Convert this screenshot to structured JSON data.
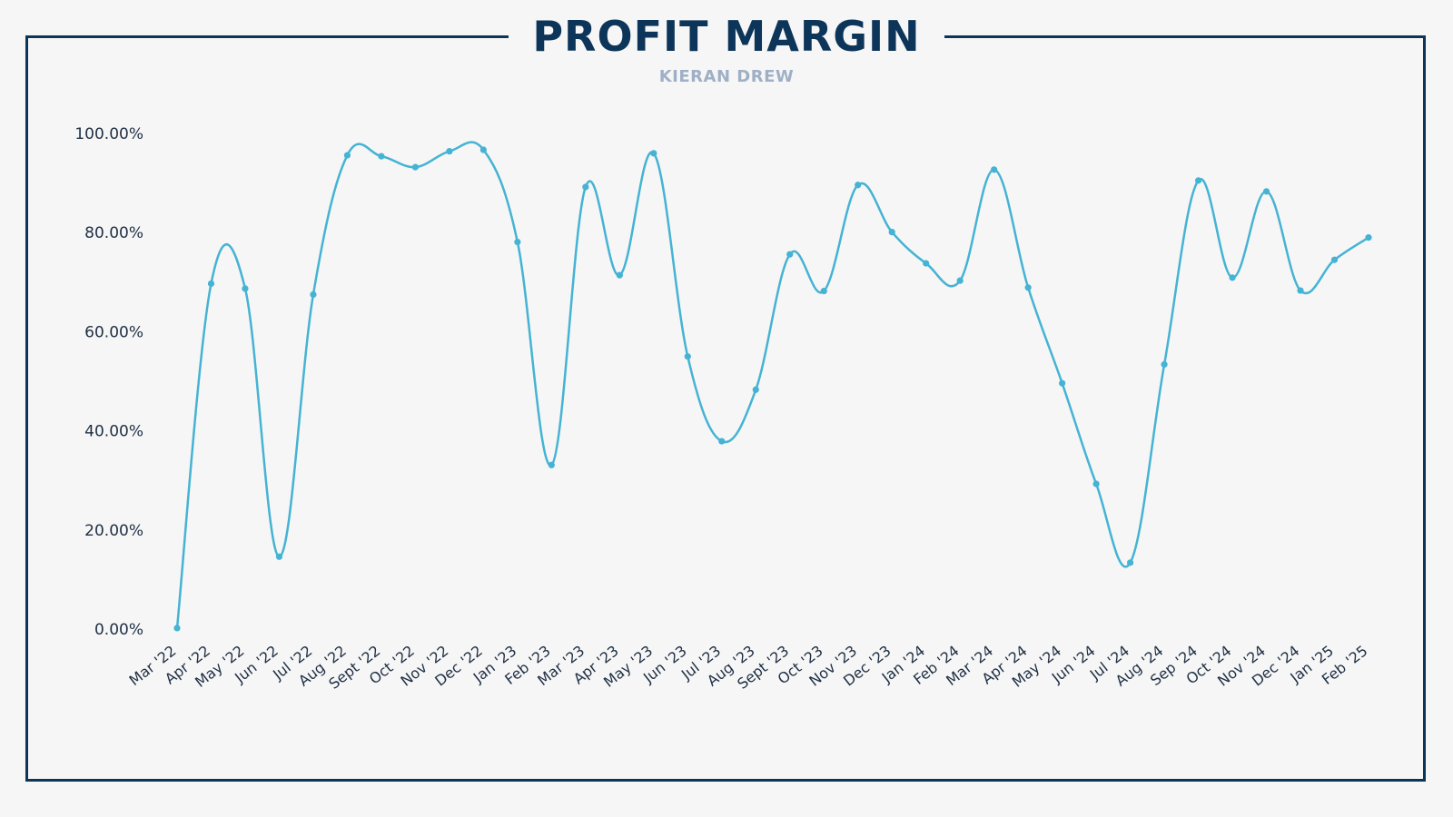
{
  "header": {
    "title": "PROFIT MARGIN",
    "subtitle": "KIERAN DREW"
  },
  "colors": {
    "frame": "#0d3559",
    "title": "#0d3559",
    "subtitle": "#9fb0c6",
    "line": "#45b3d3",
    "background": "#f6f6f6"
  },
  "chart_data": {
    "type": "line",
    "title": "PROFIT MARGIN",
    "subtitle": "KIERAN DREW",
    "xlabel": "",
    "ylabel": "",
    "ylim": [
      0,
      100
    ],
    "yticks": [
      "0.00%",
      "20.00%",
      "40.00%",
      "60.00%",
      "80.00%",
      "100.00%"
    ],
    "grid": false,
    "legend": "none",
    "categories": [
      "Mar '22",
      "Apr '22",
      "May '22",
      "Jun '22",
      "Jul '22",
      "Aug '22",
      "Sept '22",
      "Oct '22",
      "Nov '22",
      "Dec '22",
      "Jan '23",
      "Feb '23",
      "Mar '23",
      "Apr '23",
      "May '23",
      "Jun '23",
      "Jul '23",
      "Aug '23",
      "Sept '23",
      "Oct '23",
      "Nov '23",
      "Dec '23",
      "Jan '24",
      "Feb '24",
      "Mar '24",
      "Apr '24",
      "May '24",
      "Jun '24",
      "Jul '24",
      "Aug '24",
      "Sep '24",
      "Oct '24",
      "Nov '24",
      "Dec '24",
      "Jan '25",
      "Feb '25"
    ],
    "series": [
      {
        "values": [
          0.2,
          69.7,
          68.7,
          14.6,
          67.5,
          95.6,
          95.4,
          93.2,
          96.4,
          96.7,
          78.1,
          33.1,
          89.2,
          71.4,
          96.0,
          55.0,
          37.9,
          48.3,
          75.6,
          68.2,
          89.6,
          80.1,
          73.8,
          70.3,
          92.7,
          68.9,
          49.6,
          29.3,
          13.4,
          53.4,
          90.5,
          70.9,
          88.3,
          68.3,
          74.5,
          79.0
        ]
      }
    ]
  }
}
